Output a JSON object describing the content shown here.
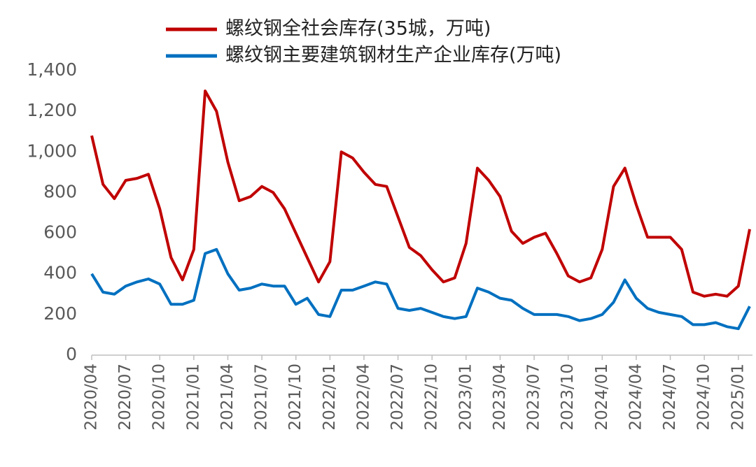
{
  "chart_data": {
    "type": "line",
    "categories": [
      "2020/04",
      null,
      null,
      "2020/07",
      null,
      null,
      "2020/10",
      null,
      null,
      "2021/01",
      null,
      null,
      "2021/04",
      null,
      null,
      "2021/07",
      null,
      null,
      "2021/10",
      null,
      null,
      "2022/01",
      null,
      null,
      "2022/04",
      null,
      null,
      "2022/07",
      null,
      null,
      "2022/10",
      null,
      null,
      "2023/01",
      null,
      null,
      "2023/04",
      null,
      null,
      "2023/07",
      null,
      null,
      "2023/10",
      null,
      null,
      "2024/01",
      null,
      null,
      "2024/04",
      null,
      null,
      "2024/07",
      null,
      null,
      "2024/10",
      null,
      null,
      "2025/01",
      null
    ],
    "series": [
      {
        "name": "螺纹钢全社会库存(35城，万吨)",
        "color": "#c00000",
        "values": [
          1080,
          840,
          770,
          860,
          870,
          890,
          720,
          480,
          370,
          520,
          1300,
          1200,
          950,
          760,
          780,
          830,
          800,
          720,
          600,
          480,
          360,
          460,
          1000,
          970,
          900,
          840,
          830,
          680,
          530,
          490,
          420,
          360,
          380,
          550,
          920,
          860,
          780,
          610,
          550,
          580,
          600,
          500,
          390,
          360,
          380,
          520,
          830,
          920,
          740,
          580,
          580,
          580,
          520,
          310,
          290,
          300,
          290,
          340,
          620
        ]
      },
      {
        "name": "螺纹钢主要建筑钢材生产企业库存(万吨)",
        "color": "#0070c0",
        "values": [
          400,
          310,
          300,
          340,
          360,
          375,
          350,
          250,
          250,
          270,
          500,
          520,
          400,
          320,
          330,
          350,
          340,
          340,
          250,
          280,
          200,
          190,
          320,
          320,
          340,
          360,
          350,
          230,
          220,
          230,
          210,
          190,
          180,
          190,
          330,
          310,
          280,
          270,
          230,
          200,
          200,
          200,
          190,
          170,
          180,
          200,
          260,
          370,
          280,
          230,
          210,
          200,
          190,
          150,
          150,
          160,
          140,
          130,
          240
        ]
      }
    ],
    "ylim": [
      0,
      1400
    ],
    "yticks": [
      0,
      200,
      400,
      600,
      800,
      {
        "value": 1000,
        "label": "1,000"
      },
      {
        "value": 1200,
        "label": "1,200"
      },
      {
        "value": 1400,
        "label": "1,400"
      }
    ]
  }
}
